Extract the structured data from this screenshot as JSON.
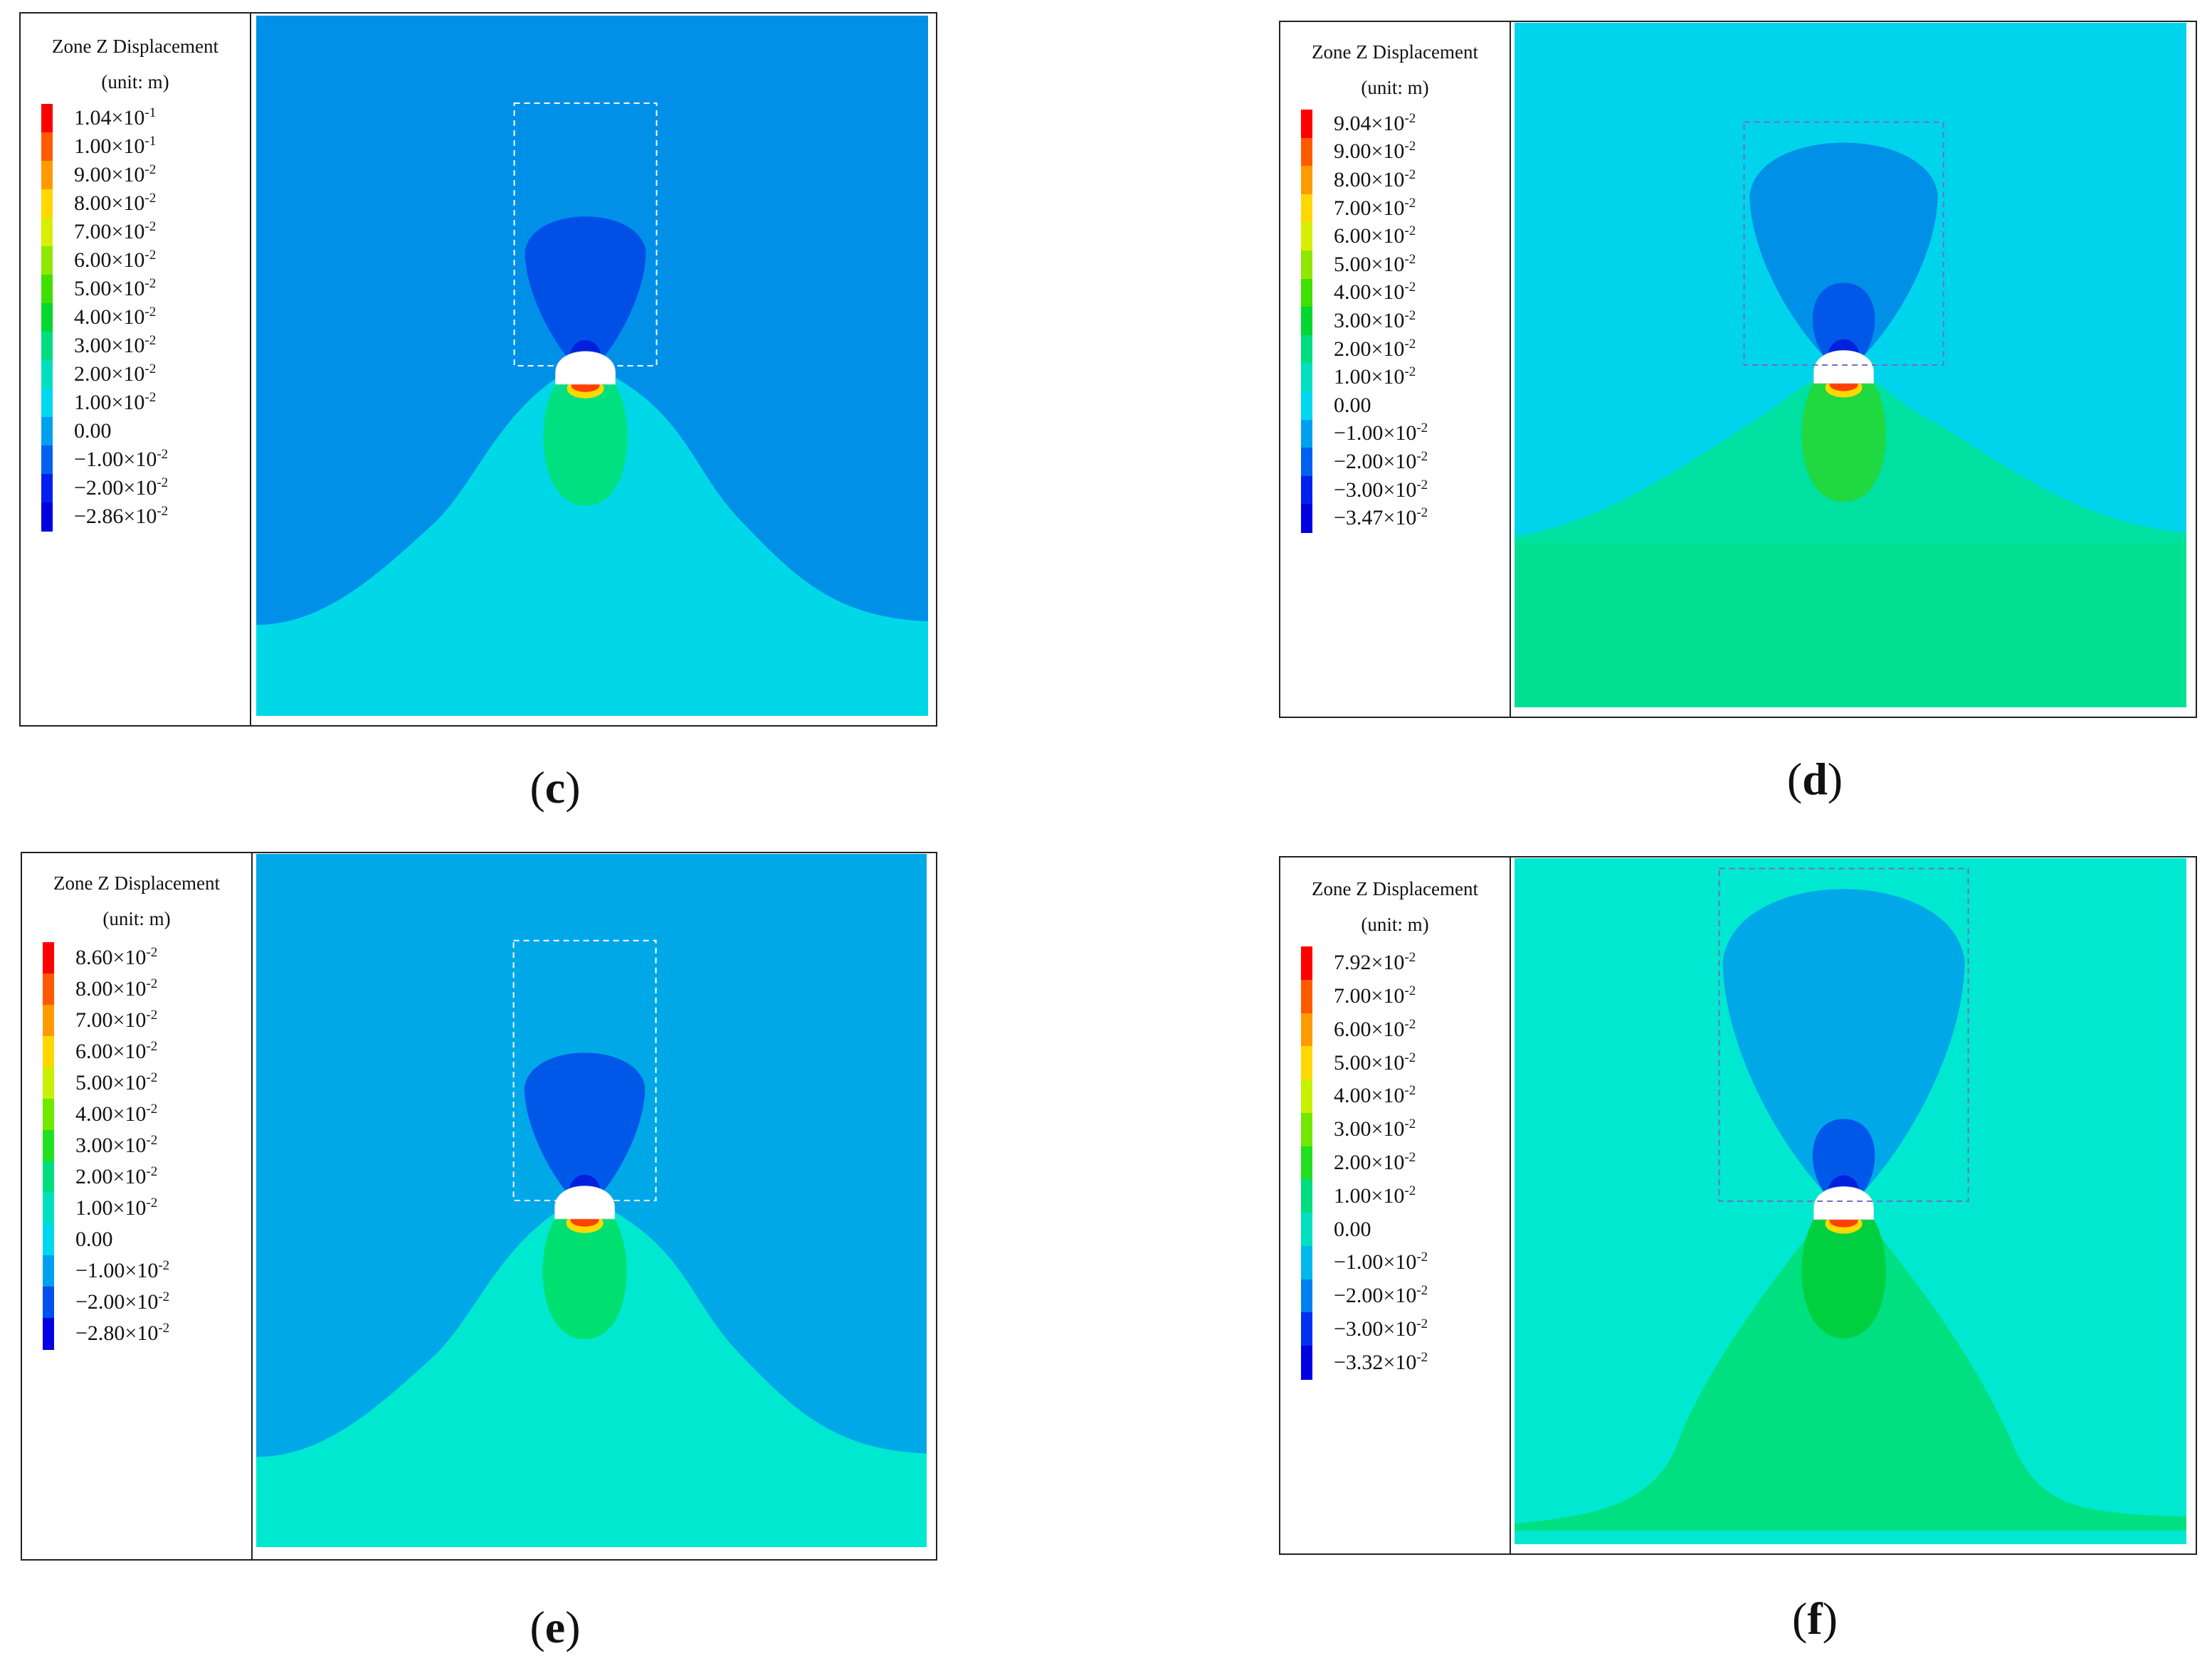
{
  "panels": [
    {
      "id": "c",
      "caption": "c",
      "legend_title": "Zone Z Displacement",
      "legend_unit": "(unit: m)",
      "legend_labels": [
        {
          "m": "1.04",
          "e": "-1"
        },
        {
          "m": "1.00",
          "e": "-1"
        },
        {
          "m": "9.00",
          "e": "-2"
        },
        {
          "m": "8.00",
          "e": "-2"
        },
        {
          "m": "7.00",
          "e": "-2"
        },
        {
          "m": "6.00",
          "e": "-2"
        },
        {
          "m": "5.00",
          "e": "-2"
        },
        {
          "m": "4.00",
          "e": "-2"
        },
        {
          "m": "3.00",
          "e": "-2"
        },
        {
          "m": "2.00",
          "e": "-2"
        },
        {
          "m": "1.00",
          "e": "-2"
        },
        {
          "m": "0.00",
          "e": ""
        },
        {
          "m": "−1.00",
          "e": "-2"
        },
        {
          "m": "−2.00",
          "e": "-2"
        },
        {
          "m": "−2.86",
          "e": "-2"
        }
      ],
      "legend_colors": [
        "#ff0000",
        "#ff5a00",
        "#ff9a00",
        "#ffd800",
        "#d8f000",
        "#90e800",
        "#40e000",
        "#00d830",
        "#00dd80",
        "#00e0c0",
        "#00d8f0",
        "#00a0f0",
        "#0060f0",
        "#0020f0",
        "#0000e0"
      ],
      "colors": {
        "background": "#0090e8",
        "upper": "#0050e8",
        "lower": "#00d8e8",
        "below": "#00e0a0",
        "core": "#00e080",
        "box": "#ffffff"
      }
    },
    {
      "id": "d",
      "caption": "d",
      "legend_title": "Zone Z Displacement",
      "legend_unit": "(unit: m)",
      "legend_labels": [
        {
          "m": "9.04",
          "e": "-2"
        },
        {
          "m": "9.00",
          "e": "-2"
        },
        {
          "m": "8.00",
          "e": "-2"
        },
        {
          "m": "7.00",
          "e": "-2"
        },
        {
          "m": "6.00",
          "e": "-2"
        },
        {
          "m": "5.00",
          "e": "-2"
        },
        {
          "m": "4.00",
          "e": "-2"
        },
        {
          "m": "3.00",
          "e": "-2"
        },
        {
          "m": "2.00",
          "e": "-2"
        },
        {
          "m": "1.00",
          "e": "-2"
        },
        {
          "m": "0.00",
          "e": ""
        },
        {
          "m": "−1.00",
          "e": "-2"
        },
        {
          "m": "−2.00",
          "e": "-2"
        },
        {
          "m": "−3.00",
          "e": "-2"
        },
        {
          "m": "−3.47",
          "e": "-2"
        }
      ],
      "legend_colors": [
        "#ff0000",
        "#ff5a00",
        "#ff9a00",
        "#ffd800",
        "#d8f000",
        "#90e800",
        "#40e000",
        "#00d830",
        "#00dd80",
        "#00e0c0",
        "#00d8f0",
        "#00a0f0",
        "#0060f0",
        "#0020f0",
        "#0000e0"
      ],
      "colors": {
        "background": "#00d4ec",
        "upper": "#0090e8",
        "lower": "#00e0a0",
        "below": "#00e090",
        "core": "#20d840",
        "box": "#7070c0"
      }
    },
    {
      "id": "e",
      "caption": "e",
      "legend_title": "Zone Z Displacement",
      "legend_unit": "(unit: m)",
      "legend_labels": [
        {
          "m": "8.60",
          "e": "-2"
        },
        {
          "m": "8.00",
          "e": "-2"
        },
        {
          "m": "7.00",
          "e": "-2"
        },
        {
          "m": "6.00",
          "e": "-2"
        },
        {
          "m": "5.00",
          "e": "-2"
        },
        {
          "m": "4.00",
          "e": "-2"
        },
        {
          "m": "3.00",
          "e": "-2"
        },
        {
          "m": "2.00",
          "e": "-2"
        },
        {
          "m": "1.00",
          "e": "-2"
        },
        {
          "m": "0.00",
          "e": ""
        },
        {
          "m": "−1.00",
          "e": "-2"
        },
        {
          "m": "−2.00",
          "e": "-2"
        },
        {
          "m": "−2.80",
          "e": "-2"
        }
      ],
      "legend_colors": [
        "#ff0000",
        "#ff5a00",
        "#ff9a00",
        "#ffd800",
        "#c8f000",
        "#70e800",
        "#20e020",
        "#00dd80",
        "#00e0c0",
        "#00d8f0",
        "#00a0f0",
        "#0050f0",
        "#0000e0"
      ],
      "colors": {
        "background": "#00a8e8",
        "upper": "#0058e8",
        "lower": "#00e8d0",
        "below": "#00e0a0",
        "core": "#00e070",
        "box": "#ffffff"
      }
    },
    {
      "id": "f",
      "caption": "f",
      "legend_title": "Zone Z Displacement",
      "legend_unit": "(unit: m)",
      "legend_labels": [
        {
          "m": "7.92",
          "e": "-2"
        },
        {
          "m": "7.00",
          "e": "-2"
        },
        {
          "m": "6.00",
          "e": "-2"
        },
        {
          "m": "5.00",
          "e": "-2"
        },
        {
          "m": "4.00",
          "e": "-2"
        },
        {
          "m": "3.00",
          "e": "-2"
        },
        {
          "m": "2.00",
          "e": "-2"
        },
        {
          "m": "1.00",
          "e": "-2"
        },
        {
          "m": "0.00",
          "e": ""
        },
        {
          "m": "−1.00",
          "e": "-2"
        },
        {
          "m": "−2.00",
          "e": "-2"
        },
        {
          "m": "−3.00",
          "e": "-2"
        },
        {
          "m": "−3.32",
          "e": "-2"
        }
      ],
      "legend_colors": [
        "#ff0000",
        "#ff5a00",
        "#ff9a00",
        "#ffd800",
        "#c8f000",
        "#70e800",
        "#20e020",
        "#00dd80",
        "#00e0c0",
        "#00b8f0",
        "#0080f0",
        "#0030f0",
        "#0000e0"
      ],
      "colors": {
        "background": "#00e8d0",
        "upper": "#00a8e8",
        "lower": "#00e080",
        "below": "#00e090",
        "core": "#00d040",
        "box": "#7070c0"
      }
    }
  ]
}
